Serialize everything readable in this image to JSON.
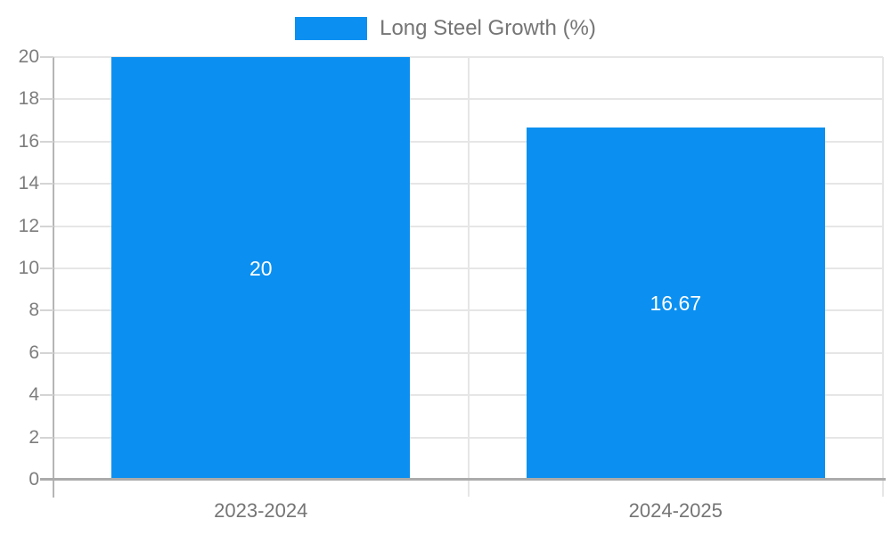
{
  "legend": {
    "label": "Long Steel Growth (%)"
  },
  "colors": {
    "bar": "#0b90f1",
    "bar_value_label": "#ffffff",
    "gridline": "#e6e6e6",
    "axis": "#ababab",
    "tick_text": "#757575"
  },
  "chart_data": {
    "type": "bar",
    "title": "Long Steel Growth (%)",
    "categories": [
      "2023-2024",
      "2024-2025"
    ],
    "series": [
      {
        "name": "Long Steel Growth (%)",
        "values": [
          20,
          16.67
        ]
      }
    ],
    "value_labels": [
      "20",
      "16.67"
    ],
    "xlabel": "",
    "ylabel": "",
    "ylim": [
      0,
      20
    ],
    "yticks": [
      0,
      2,
      4,
      6,
      8,
      10,
      12,
      14,
      16,
      18,
      20
    ],
    "grid": true,
    "legend_position": "top"
  }
}
